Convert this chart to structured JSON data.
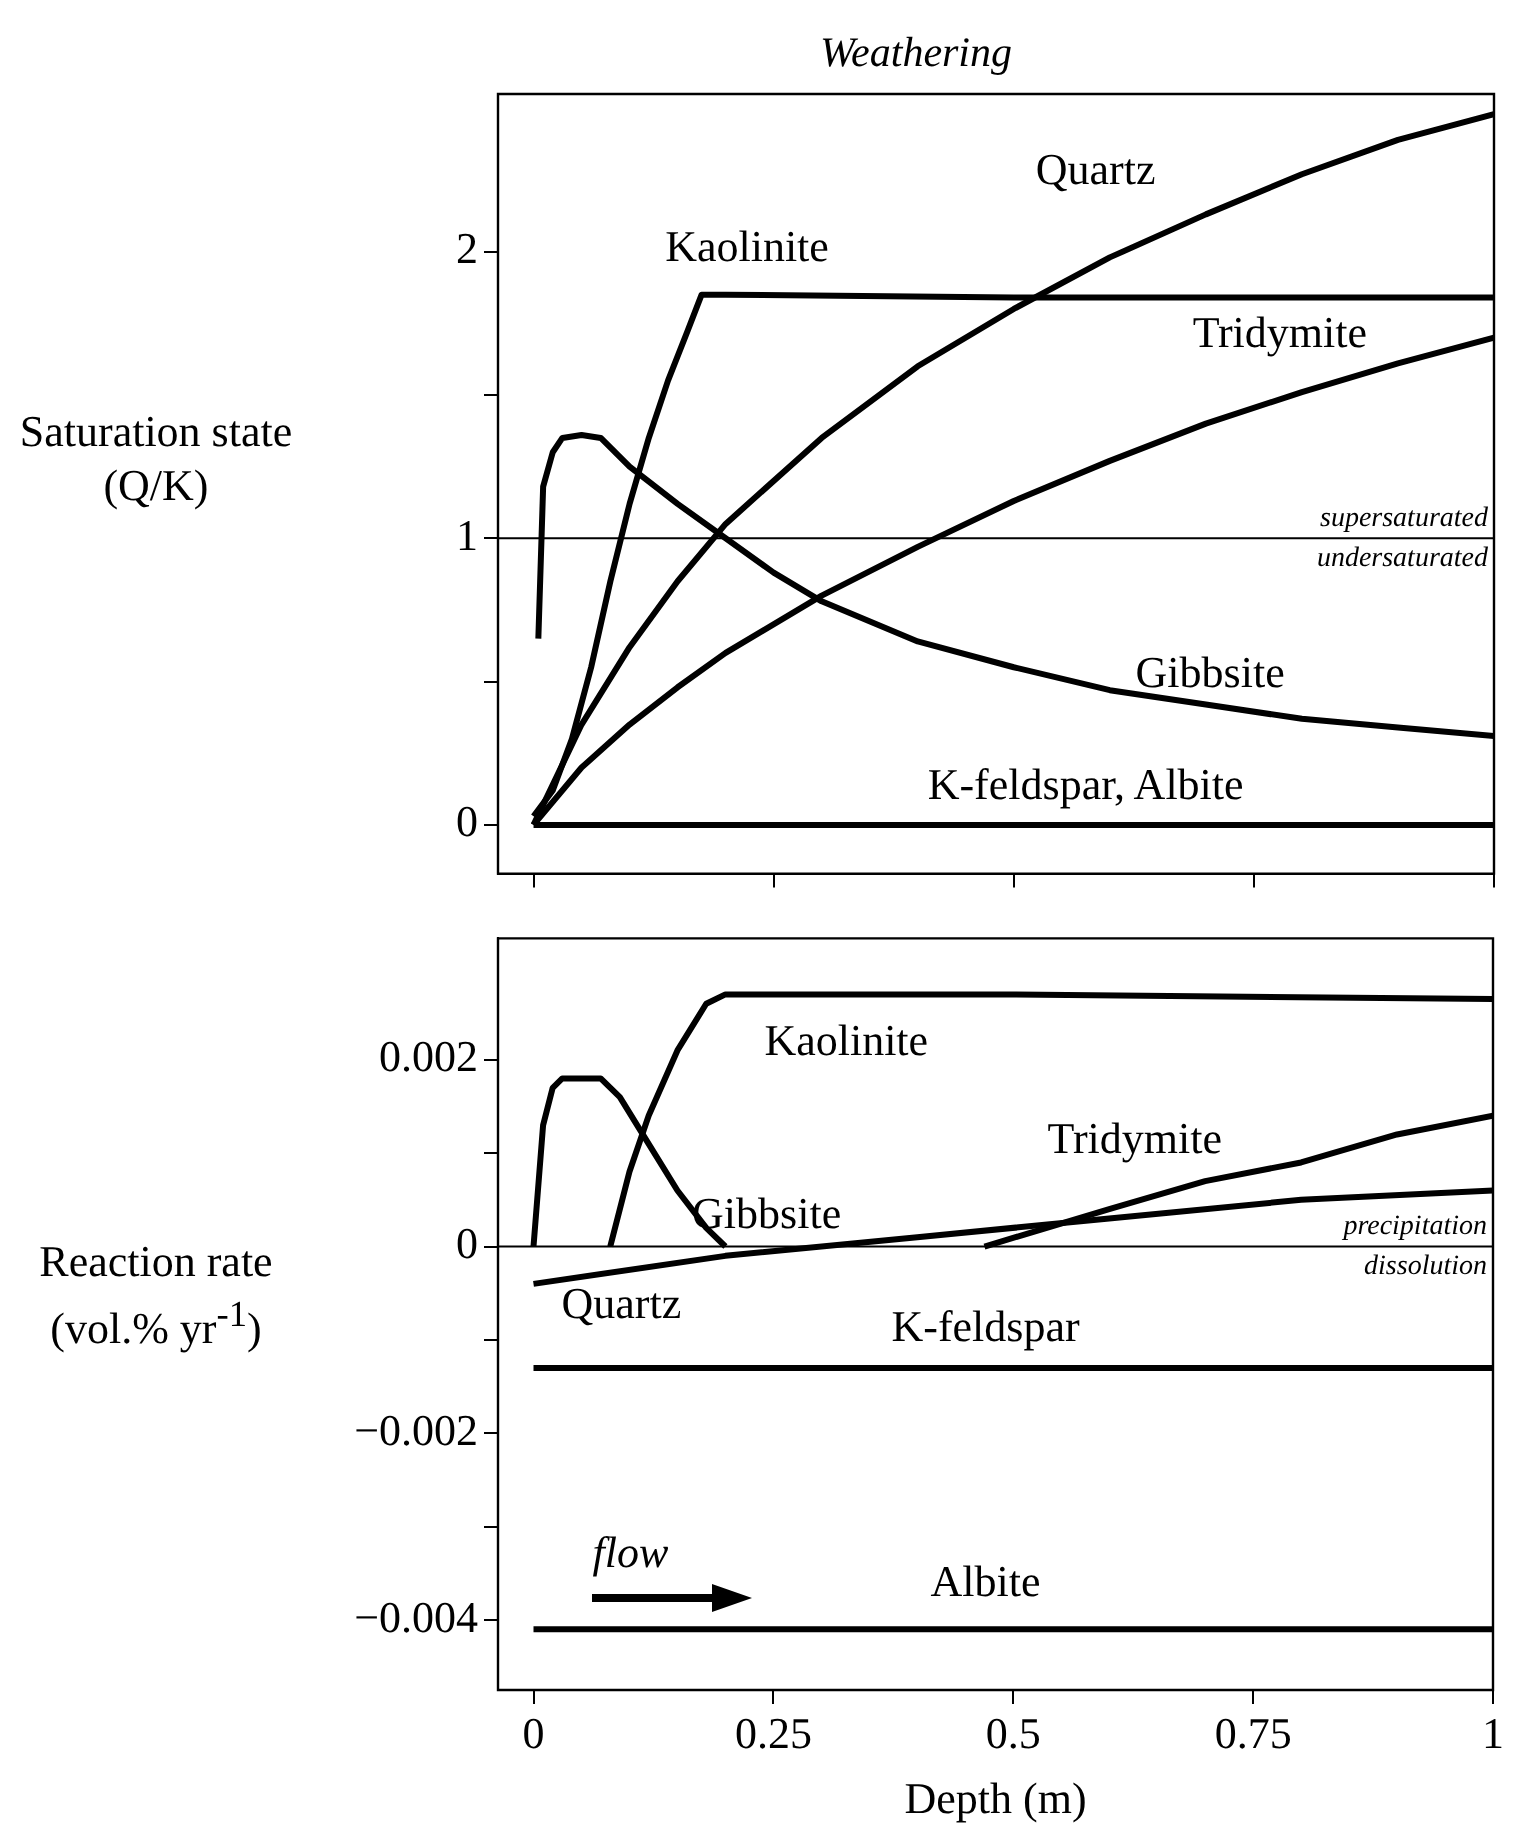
{
  "chart_data": [
    {
      "type": "line",
      "title": "Weathering",
      "ylabel": "Saturation state (Q/K)",
      "xlim": [
        -0.037,
        1
      ],
      "xticks": [
        0,
        0.25,
        0.5,
        0.75,
        1
      ],
      "ylim": [
        -0.17,
        2.55
      ],
      "yticks": [
        0,
        {
          "value": 0.5,
          "label": null
        },
        1,
        {
          "value": 1.5,
          "label": null
        },
        2
      ],
      "tick_labels": "y",
      "grid": false,
      "legend": false,
      "marker": "none",
      "line_style": "solid",
      "ref_lines": [
        {
          "axis": "y",
          "value": 1,
          "color": "#000000"
        }
      ],
      "annotations": [
        "supersaturated",
        "undersaturated"
      ],
      "series": [
        {
          "name": "Kaolinite",
          "color": "#000000",
          "x": [
            0,
            0.02,
            0.04,
            0.06,
            0.08,
            0.1,
            0.12,
            0.14,
            0.16,
            0.175,
            0.2,
            0.5,
            1
          ],
          "values": [
            0.03,
            0.12,
            0.3,
            0.55,
            0.85,
            1.12,
            1.35,
            1.55,
            1.72,
            1.85,
            1.85,
            1.84,
            1.84
          ]
        },
        {
          "name": "Quartz",
          "color": "#000000",
          "x": [
            0,
            0.05,
            0.1,
            0.15,
            0.2,
            0.3,
            0.4,
            0.5,
            0.6,
            0.7,
            0.8,
            0.9,
            1
          ],
          "values": [
            0,
            0.35,
            0.62,
            0.85,
            1.05,
            1.35,
            1.6,
            1.8,
            1.98,
            2.13,
            2.27,
            2.39,
            2.48
          ]
        },
        {
          "name": "Tridymite",
          "color": "#000000",
          "x": [
            0,
            0.05,
            0.1,
            0.15,
            0.2,
            0.3,
            0.4,
            0.5,
            0.6,
            0.7,
            0.8,
            0.9,
            1
          ],
          "values": [
            0,
            0.2,
            0.35,
            0.48,
            0.6,
            0.8,
            0.97,
            1.13,
            1.27,
            1.4,
            1.51,
            1.61,
            1.7
          ]
        },
        {
          "name": "Gibbsite",
          "color": "#000000",
          "x": [
            0.005,
            0.01,
            0.02,
            0.03,
            0.05,
            0.07,
            0.1,
            0.15,
            0.2,
            0.25,
            0.3,
            0.4,
            0.5,
            0.6,
            0.7,
            0.8,
            0.9,
            1
          ],
          "values": [
            0.65,
            1.18,
            1.3,
            1.35,
            1.36,
            1.35,
            1.25,
            1.12,
            1.0,
            0.88,
            0.78,
            0.64,
            0.55,
            0.47,
            0.42,
            0.37,
            0.34,
            0.31
          ]
        },
        {
          "name": "K-feldspar, Albite",
          "color": "#000000",
          "x": [
            0,
            1
          ],
          "values": [
            0,
            0
          ]
        }
      ]
    },
    {
      "type": "line",
      "xlabel": "Depth (m)",
      "ylabel": "Reaction rate (vol.% yr$^{-1}$)",
      "xlim": [
        -0.037,
        1
      ],
      "xticks": [
        0,
        0.25,
        0.5,
        0.75,
        1
      ],
      "ylim": [
        -0.00475,
        0.0033
      ],
      "yticks": [
        {
          "value": 0.002,
          "label": "0.002"
        },
        {
          "value": 0.001,
          "label": null
        },
        0,
        {
          "value": -0.001,
          "label": null
        },
        {
          "value": -0.002,
          "label": "−0.002"
        },
        {
          "value": -0.003,
          "label": null
        },
        {
          "value": -0.004,
          "label": "−0.004"
        }
      ],
      "grid": false,
      "legend": false,
      "marker": "none",
      "line_style": "solid",
      "ref_lines": [
        {
          "axis": "y",
          "value": 0,
          "color": "#000000"
        }
      ],
      "annotations": [
        "precipitation",
        "dissolution",
        "flow"
      ],
      "series": [
        {
          "name": "Gibbsite",
          "color": "#000000",
          "x": [
            0,
            0.01,
            0.02,
            0.03,
            0.05,
            0.07,
            0.09,
            0.12,
            0.15,
            0.18,
            0.2
          ],
          "values": [
            0,
            0.0013,
            0.0017,
            0.0018,
            0.0018,
            0.0018,
            0.0016,
            0.0011,
            0.0006,
            0.0002,
            0
          ]
        },
        {
          "name": "Kaolinite",
          "color": "#000000",
          "x": [
            0.08,
            0.1,
            0.12,
            0.15,
            0.18,
            0.2,
            0.5,
            1
          ],
          "values": [
            0,
            0.0008,
            0.0014,
            0.0021,
            0.0026,
            0.0027,
            0.0027,
            0.00265
          ]
        },
        {
          "name": "Quartz",
          "color": "#000000",
          "x": [
            0,
            0.2,
            0.4,
            0.6,
            0.8,
            1
          ],
          "values": [
            -0.0004,
            -0.0001,
            0.0001,
            0.0003,
            0.0005,
            0.0006
          ]
        },
        {
          "name": "Tridymite",
          "color": "#000000",
          "x": [
            0.47,
            0.6,
            0.7,
            0.8,
            0.9,
            1
          ],
          "values": [
            0,
            0.0004,
            0.0007,
            0.0009,
            0.0012,
            0.0014
          ]
        },
        {
          "name": "K-feldspar",
          "color": "#000000",
          "x": [
            0,
            1
          ],
          "values": [
            -0.0013,
            -0.0013
          ]
        },
        {
          "name": "Albite",
          "color": "#000000",
          "x": [
            0,
            1
          ],
          "values": [
            -0.0041,
            -0.0041
          ]
        }
      ]
    }
  ]
}
